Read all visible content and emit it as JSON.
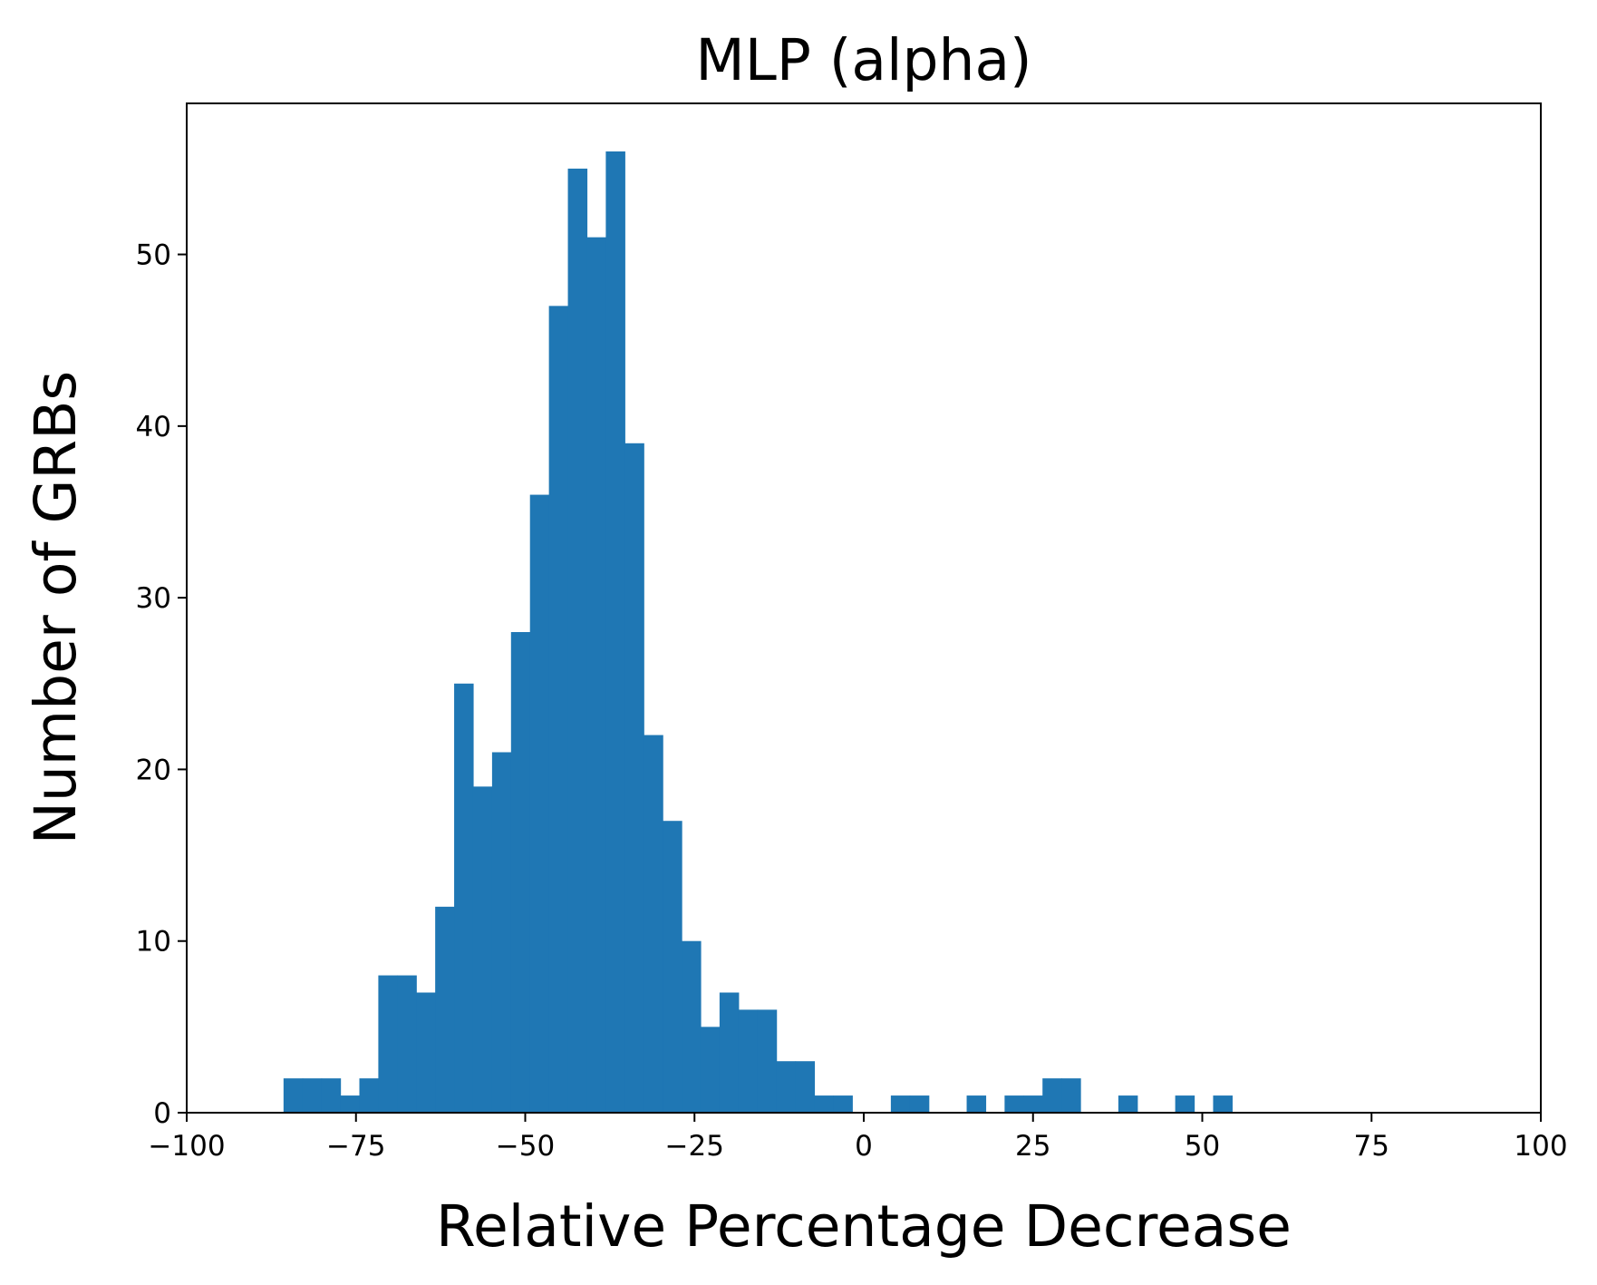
{
  "chart_data": {
    "type": "bar",
    "title": "MLP (alpha)",
    "xlabel": "Relative Percentage Decrease",
    "ylabel": "Number of GRBs",
    "xlim": [
      -100,
      100
    ],
    "ylim": [
      0,
      58.8
    ],
    "x_ticks": [
      -100,
      -75,
      -50,
      -25,
      0,
      25,
      50,
      75,
      100
    ],
    "x_tick_labels": [
      "−100",
      "−75",
      "−50",
      "−25",
      "0",
      "25",
      "50",
      "75",
      "100"
    ],
    "y_ticks": [
      0,
      10,
      20,
      30,
      40,
      50
    ],
    "y_tick_labels": [
      "0",
      "10",
      "20",
      "30",
      "40",
      "50"
    ],
    "grid": false,
    "legend": "none",
    "bar_color": "#1f77b4",
    "bin_width": 2.8,
    "bins": [
      {
        "start": -85.7,
        "count": 2
      },
      {
        "start": -82.9,
        "count": 2
      },
      {
        "start": -80.1,
        "count": 2
      },
      {
        "start": -77.3,
        "count": 1
      },
      {
        "start": -74.5,
        "count": 2
      },
      {
        "start": -71.7,
        "count": 8
      },
      {
        "start": -68.9,
        "count": 8
      },
      {
        "start": -66.1,
        "count": 7
      },
      {
        "start": -63.3,
        "count": 12
      },
      {
        "start": -60.5,
        "count": 25
      },
      {
        "start": -57.7,
        "count": 19
      },
      {
        "start": -54.9,
        "count": 21
      },
      {
        "start": -52.1,
        "count": 28
      },
      {
        "start": -49.3,
        "count": 36
      },
      {
        "start": -46.5,
        "count": 47
      },
      {
        "start": -43.7,
        "count": 55
      },
      {
        "start": -40.9,
        "count": 51
      },
      {
        "start": -38.1,
        "count": 56
      },
      {
        "start": -35.3,
        "count": 39
      },
      {
        "start": -32.5,
        "count": 22
      },
      {
        "start": -29.7,
        "count": 17
      },
      {
        "start": -26.9,
        "count": 10
      },
      {
        "start": -24.1,
        "count": 5
      },
      {
        "start": -21.3,
        "count": 7
      },
      {
        "start": -18.5,
        "count": 6
      },
      {
        "start": -15.7,
        "count": 6
      },
      {
        "start": -12.9,
        "count": 3
      },
      {
        "start": -10.1,
        "count": 3
      },
      {
        "start": -7.3,
        "count": 1
      },
      {
        "start": -4.5,
        "count": 1
      },
      {
        "start": 4.0,
        "count": 1
      },
      {
        "start": 6.8,
        "count": 1
      },
      {
        "start": 15.2,
        "count": 1
      },
      {
        "start": 20.8,
        "count": 1
      },
      {
        "start": 23.6,
        "count": 1
      },
      {
        "start": 26.4,
        "count": 2
      },
      {
        "start": 29.2,
        "count": 2
      },
      {
        "start": 37.6,
        "count": 1
      },
      {
        "start": 46.0,
        "count": 1
      },
      {
        "start": 51.6,
        "count": 1
      }
    ]
  }
}
